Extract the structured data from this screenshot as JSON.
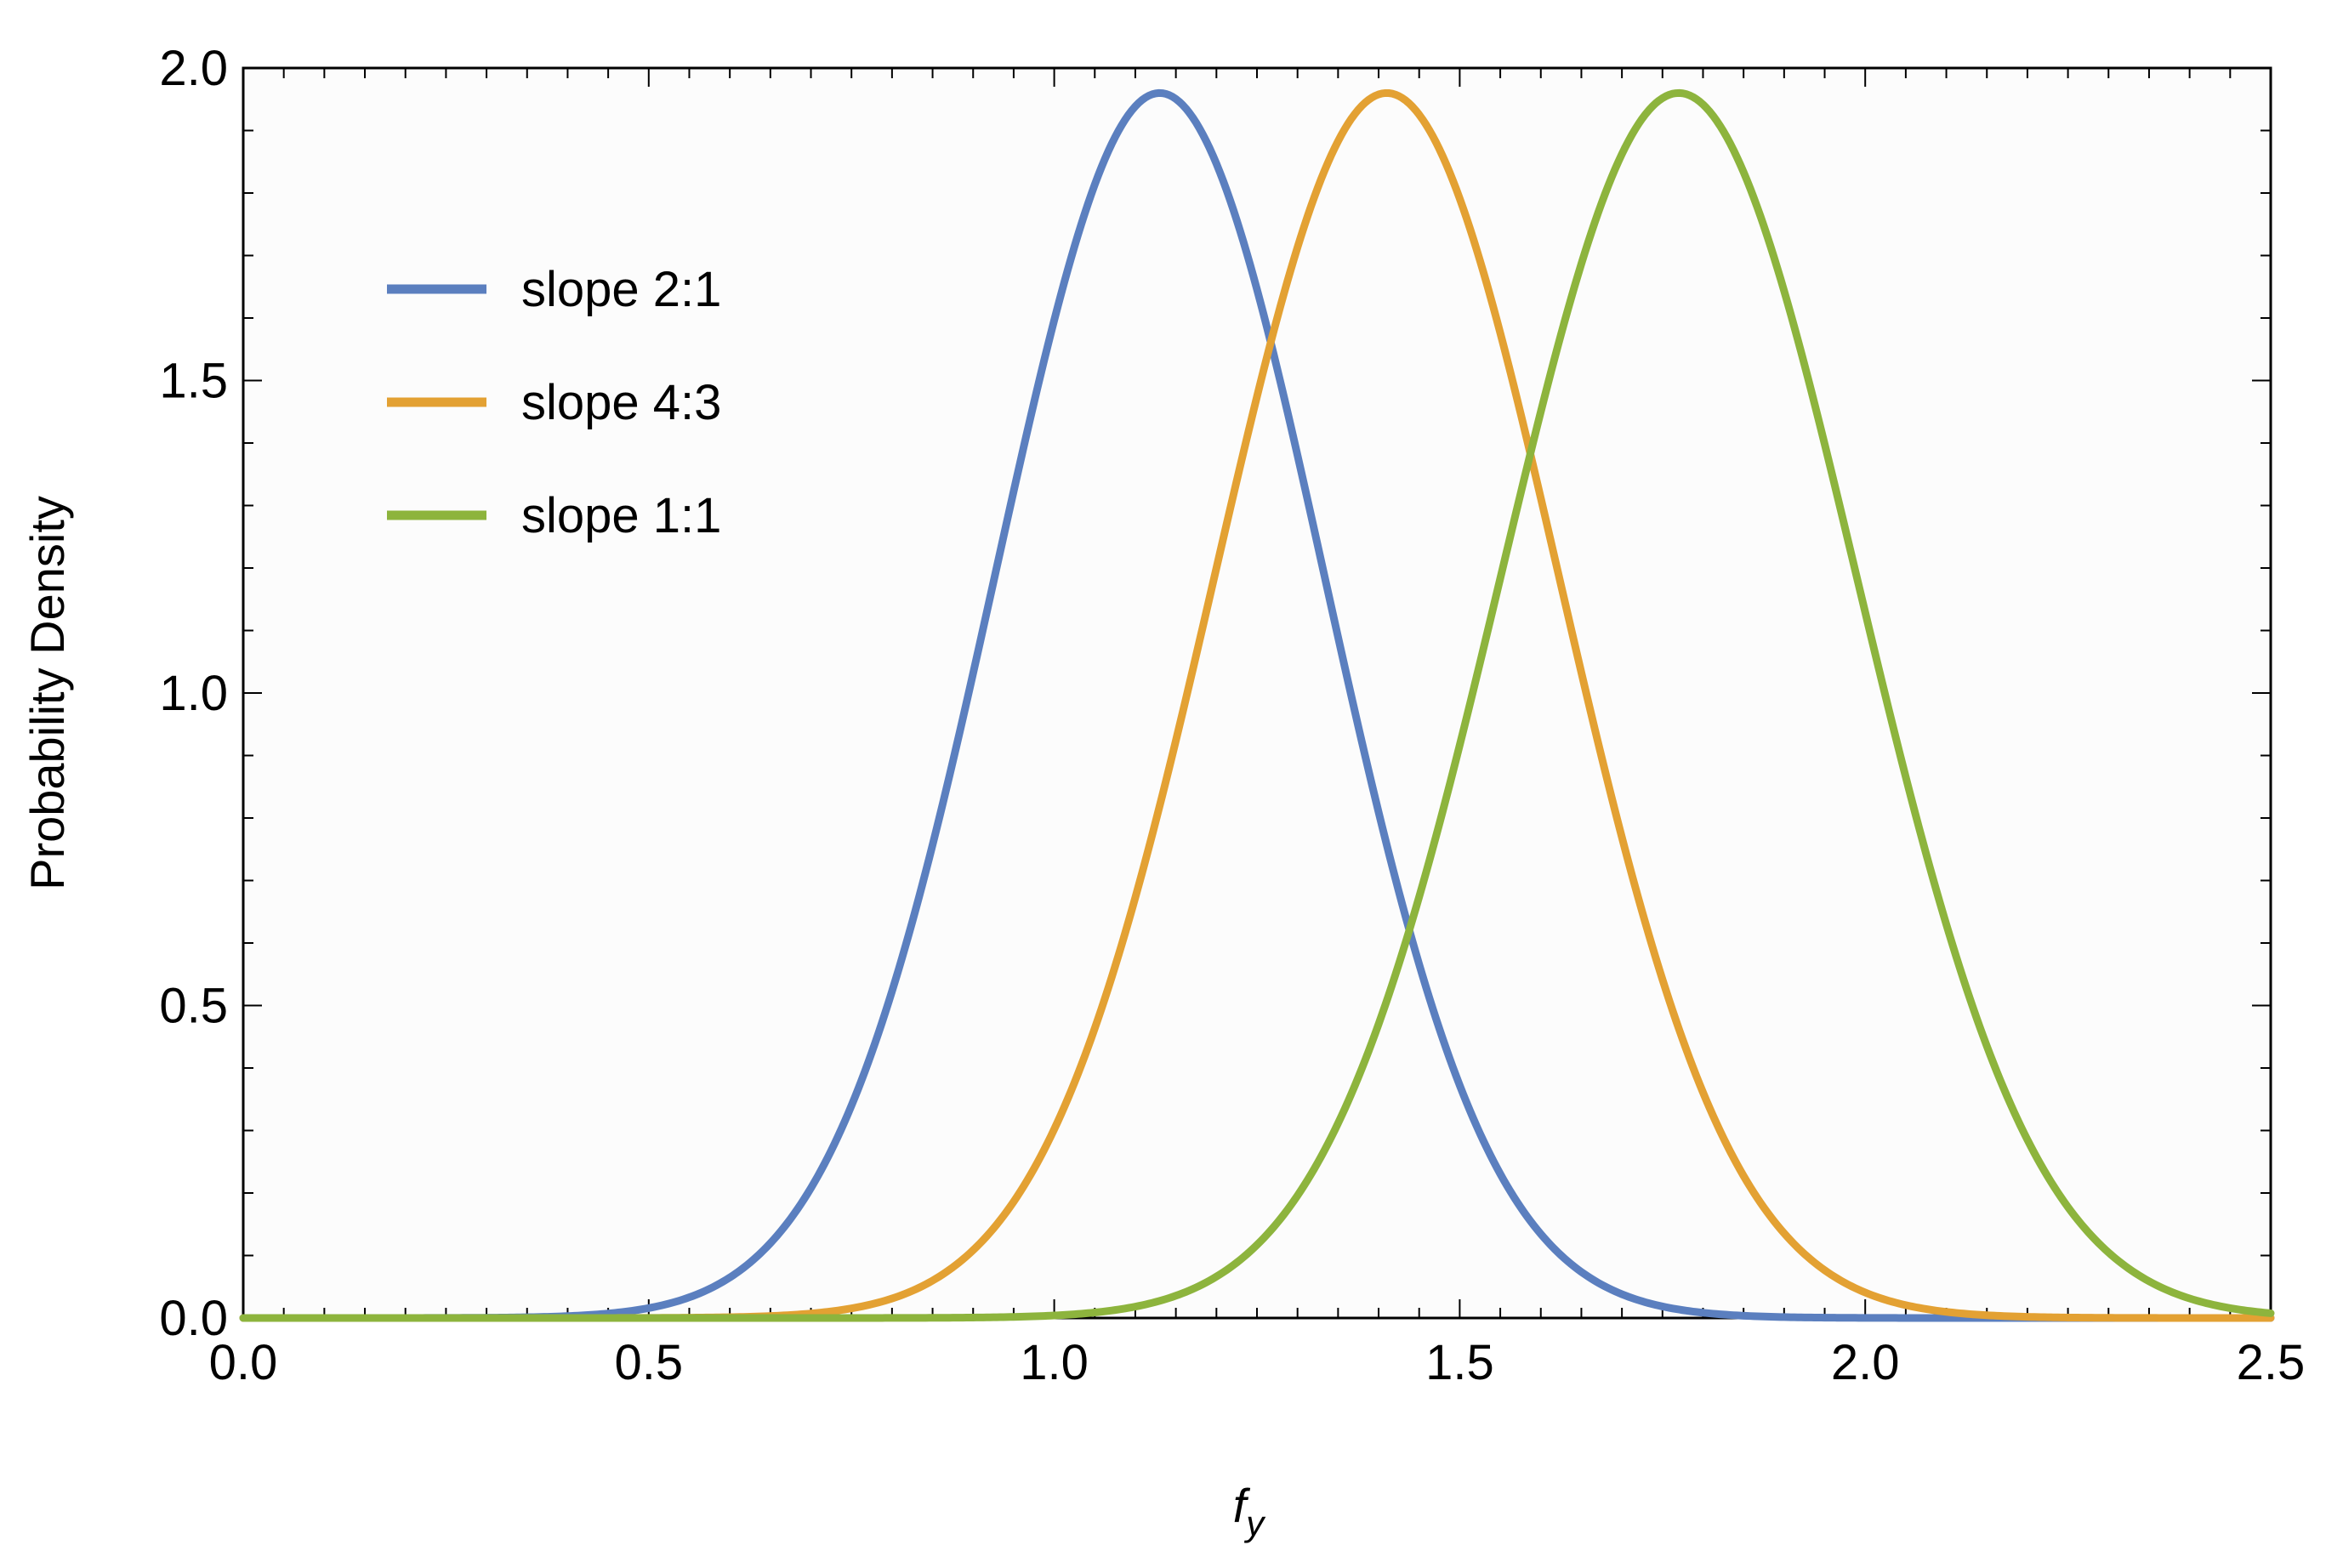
{
  "chart_data": {
    "type": "line",
    "title": "",
    "xlabel": "f",
    "xlabel_subscript": "y",
    "ylabel": "Probability Density",
    "xlim": [
      0.0,
      2.5
    ],
    "ylim": [
      0.0,
      2.0
    ],
    "x_ticks": [
      "0.0",
      "0.5",
      "1.0",
      "1.5",
      "2.0",
      "2.5"
    ],
    "y_ticks": [
      "0.0",
      "0.5",
      "1.0",
      "1.5",
      "2.0"
    ],
    "grid": false,
    "legend_position": "top-left",
    "series": [
      {
        "name": "slope 2:1",
        "color": "#5b7fbf",
        "peak_x": 1.13,
        "peak_y": 1.96,
        "x": [
          0.0,
          0.4,
          0.5,
          0.6,
          0.7,
          0.8,
          0.9,
          1.0,
          1.13,
          1.2,
          1.3,
          1.4,
          1.45,
          1.5,
          1.6,
          1.7,
          1.8,
          1.9,
          2.0,
          2.5
        ],
        "y": [
          0.0,
          0.0,
          0.02,
          0.08,
          0.23,
          0.51,
          0.97,
          1.5,
          1.96,
          1.86,
          1.44,
          0.81,
          0.58,
          0.39,
          0.16,
          0.05,
          0.01,
          0.0,
          0.0,
          0.0
        ]
      },
      {
        "name": "slope 4:3",
        "color": "#e3a133",
        "peak_x": 1.41,
        "peak_y": 1.96,
        "x": [
          0.0,
          0.7,
          0.8,
          0.9,
          1.0,
          1.1,
          1.2,
          1.3,
          1.41,
          1.5,
          1.6,
          1.7,
          1.8,
          1.9,
          2.0,
          2.1,
          2.2,
          2.5
        ],
        "y": [
          0.0,
          0.0,
          0.02,
          0.08,
          0.28,
          0.68,
          1.26,
          1.79,
          1.96,
          1.82,
          1.33,
          0.75,
          0.33,
          0.11,
          0.03,
          0.01,
          0.0,
          0.0
        ]
      },
      {
        "name": "slope 1:1",
        "color": "#8db43d",
        "peak_x": 1.77,
        "peak_y": 1.96,
        "x": [
          0.0,
          1.0,
          1.1,
          1.2,
          1.3,
          1.4,
          1.45,
          1.5,
          1.6,
          1.7,
          1.77,
          1.8,
          1.9,
          2.0,
          2.1,
          2.2,
          2.3,
          2.4,
          2.5
        ],
        "y": [
          0.0,
          0.01,
          0.03,
          0.09,
          0.24,
          0.53,
          0.72,
          0.94,
          1.41,
          1.83,
          1.96,
          1.93,
          1.62,
          1.1,
          0.58,
          0.24,
          0.08,
          0.02,
          0.0
        ]
      }
    ]
  }
}
